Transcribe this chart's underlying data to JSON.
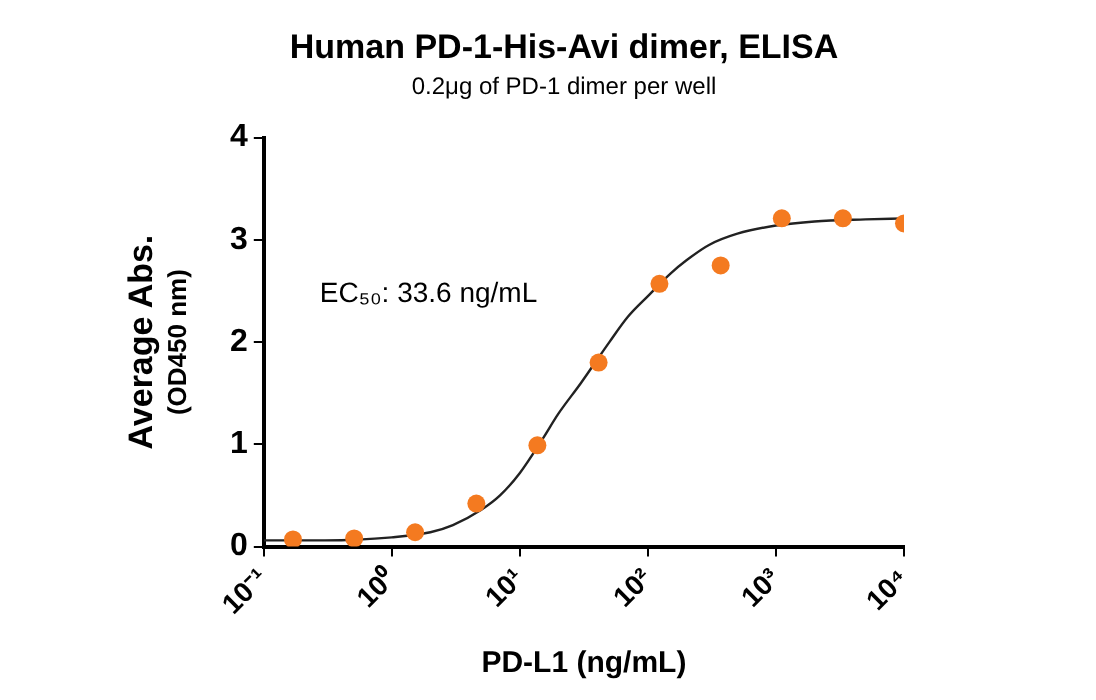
{
  "chart_data": {
    "type": "scatter",
    "title": "Human PD-1-His-Avi dimer, ELISA",
    "subtitle": "0.2μg of PD-1 dimer per well",
    "xlabel": "PD-L1 (ng/mL)",
    "ylabel": "Average Abs.\n(OD450 nm)",
    "annotations": [
      "EC₅₀: 33.6 ng/mL"
    ],
    "log": "x",
    "grid": false,
    "legend": false,
    "marker": "circle",
    "xlim": [
      0.1,
      10000
    ],
    "xticks": [
      {
        "value": 0.1,
        "label": "10⁻¹"
      },
      {
        "value": 1,
        "label": "10⁰"
      },
      {
        "value": 10,
        "label": "10¹"
      },
      {
        "value": 100,
        "label": "10²"
      },
      {
        "value": 1000,
        "label": "10³"
      },
      {
        "value": 10000,
        "label": "10⁴"
      }
    ],
    "ylim": [
      0,
      4
    ],
    "yticks": [
      0,
      1,
      2,
      3,
      4
    ],
    "series": [
      {
        "color": "#f47a20",
        "x": [
          0.169,
          0.508,
          1.52,
          4.57,
          13.7,
          41.2,
          123,
          370,
          1111,
          3333,
          10000
        ],
        "values": [
          0.07,
          0.08,
          0.14,
          0.42,
          0.99,
          1.8,
          2.57,
          2.75,
          3.21,
          3.21,
          3.16
        ]
      },
      {
        "type": "line",
        "color": "#222222",
        "marker": "none",
        "x": [
          0.1,
          0.3,
          1,
          2,
          3,
          5,
          7,
          10,
          15,
          20,
          30,
          50,
          70,
          100,
          150,
          200,
          300,
          500,
          1000,
          2000,
          5000,
          10000
        ],
        "values": [
          0.06,
          0.06,
          0.09,
          0.14,
          0.21,
          0.36,
          0.5,
          0.72,
          1.05,
          1.3,
          1.6,
          2.0,
          2.25,
          2.45,
          2.67,
          2.8,
          2.95,
          3.06,
          3.14,
          3.18,
          3.2,
          3.21
        ]
      }
    ]
  }
}
